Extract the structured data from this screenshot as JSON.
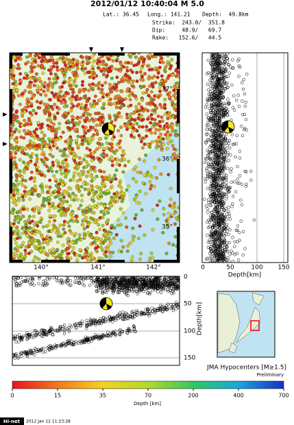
{
  "header": {
    "title": "2012/01/12 10:40:04  M 5.0",
    "lat": "Lat.: 36.45",
    "long": "Long.: 141.21",
    "depth": "Depth:  49.8km",
    "strike": "Strike:  243.0/  351.8",
    "dip": "Dip:     48.9/   69.7",
    "rake": "Rake:   152.6/   44.5"
  },
  "map": {
    "lat_labels": [
      "37°",
      "36°",
      "35°"
    ],
    "lon_labels": [
      "140°",
      "141°",
      "142°"
    ]
  },
  "ns_section": {
    "depth_ticks": [
      "0",
      "50",
      "100",
      "150"
    ],
    "axis_label": "Depth[km]"
  },
  "ew_section": {
    "depth_ticks": [
      "0",
      "50",
      "100",
      "150"
    ],
    "axis_label": "Depth[km]"
  },
  "inset": {
    "caption": "JMA Hypocenters [M≥1.5]",
    "status": "Preliminary"
  },
  "colorbar": {
    "ticks": [
      "0",
      "15",
      "35",
      "70",
      "200",
      "400",
      "700"
    ],
    "label": "Depth [km]"
  },
  "footer": {
    "brand": "Hi-net",
    "timestamp": "2012 Jan 12 11:23:28"
  }
}
